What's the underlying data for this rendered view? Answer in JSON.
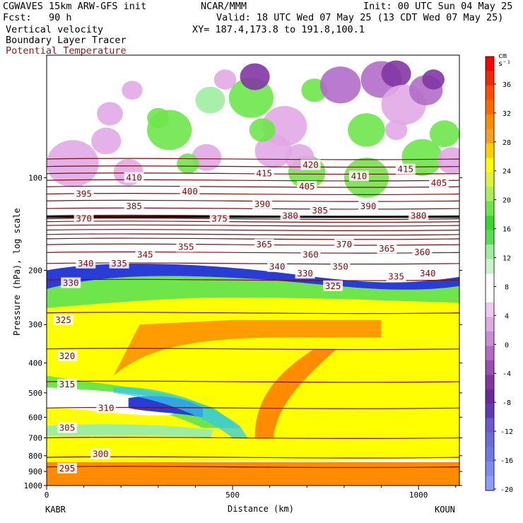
{
  "header": {
    "line1_left": "CGWAVES 15km ARW-GFS init",
    "line1_mid": "NCAR/MMM",
    "line1_right": "Init: 00 UTC Sun 04 May 25",
    "line2_left": "Fcst:   90 h",
    "line2_right": "Valid: 18 UTC Wed 07 May 25 (13 CDT Wed 07 May 25)",
    "line3_left": "Vertical velocity",
    "line3_right": "XY= 187.4,173.8 to 191.8,100.1",
    "line4_left": "Boundary Layer Tracer",
    "line5_left": "Potential Temperature"
  },
  "chart_data": {
    "type": "cross-section",
    "x_axis": {
      "label": "Distance (km)",
      "ticks": [
        0,
        500,
        1000
      ],
      "range": [
        0,
        1110
      ],
      "start_label": "KABR",
      "end_label": "KOUN"
    },
    "y_axis": {
      "label": "Pressure (hPa), log scale",
      "ticks": [
        100,
        200,
        300,
        400,
        500,
        600,
        700,
        800,
        900,
        1000
      ],
      "range": [
        1000,
        40
      ],
      "scale": "log"
    },
    "colorbar": {
      "unit": "cm s⁻¹",
      "labels": [
        36,
        32,
        28,
        24,
        20,
        16,
        12,
        8,
        4,
        0,
        -4,
        -8,
        -12,
        -16,
        -20
      ],
      "colors": [
        "#ff0000",
        "#f02a00",
        "#ff4c00",
        "#ff6a00",
        "#ff8c00",
        "#f5a020",
        "#ffd000",
        "#ffff00",
        "#e0f23a",
        "#aaf05a",
        "#6ee64b",
        "#36d72a",
        "#55dd55",
        "#9eeea0",
        "#c8f5cc",
        "#ffffff",
        "#ffffff",
        "#f0c8f0",
        "#e1a8e6",
        "#c78dd6",
        "#b36bc8",
        "#9c4db5",
        "#8236a3",
        "#6a2a99",
        "#5f3cb4",
        "#6a5acd",
        "#6b6cdc",
        "#7078e8",
        "#7d8cf2",
        "#8c9cff"
      ]
    },
    "theta_contours": [
      {
        "value": 295,
        "p": 870
      },
      {
        "value": 300,
        "p": 810
      },
      {
        "value": 305,
        "p": 700
      },
      {
        "value": 310,
        "p": 560
      },
      {
        "value": 315,
        "p": 460
      },
      {
        "value": 320,
        "p": 360
      },
      {
        "value": 325,
        "p": 275
      },
      {
        "value": 330,
        "p": 215
      },
      {
        "value": 335,
        "p": 190
      },
      {
        "value": 340,
        "p": 175
      },
      {
        "value": 345,
        "p": 165
      },
      {
        "value": 350,
        "p": 158
      },
      {
        "value": 355,
        "p": 153
      },
      {
        "value": 360,
        "p": 148
      },
      {
        "value": 365,
        "p": 143
      },
      {
        "value": 370,
        "p": 139
      },
      {
        "value": 375,
        "p": 136
      },
      {
        "value": 380,
        "p": 133
      },
      {
        "value": 385,
        "p": 126
      },
      {
        "value": 390,
        "p": 119
      },
      {
        "value": 395,
        "p": 113
      },
      {
        "value": 400,
        "p": 107
      },
      {
        "value": 405,
        "p": 102
      },
      {
        "value": 410,
        "p": 97
      },
      {
        "value": 415,
        "p": 92
      },
      {
        "value": 420,
        "p": 87
      }
    ],
    "theta_labels": [
      {
        "text": "295",
        "x": 55,
        "p": 880
      },
      {
        "text": "300",
        "x": 145,
        "p": 790
      },
      {
        "text": "305",
        "x": 55,
        "p": 650
      },
      {
        "text": "310",
        "x": 160,
        "p": 560
      },
      {
        "text": "315",
        "x": 55,
        "p": 470
      },
      {
        "text": "320",
        "x": 55,
        "p": 380
      },
      {
        "text": "325",
        "x": 45,
        "p": 290
      },
      {
        "text": "330",
        "x": 65,
        "p": 220
      },
      {
        "text": "335",
        "x": 195,
        "p": 190
      },
      {
        "text": "340",
        "x": 105,
        "p": 190
      },
      {
        "text": "345",
        "x": 265,
        "p": 178
      },
      {
        "text": "355",
        "x": 375,
        "p": 168
      },
      {
        "text": "365",
        "x": 585,
        "p": 165
      },
      {
        "text": "360",
        "x": 710,
        "p": 178
      },
      {
        "text": "370",
        "x": 800,
        "p": 165
      },
      {
        "text": "365",
        "x": 915,
        "p": 170
      },
      {
        "text": "360",
        "x": 1010,
        "p": 175
      },
      {
        "text": "350",
        "x": 790,
        "p": 195
      },
      {
        "text": "340",
        "x": 620,
        "p": 195
      },
      {
        "text": "330",
        "x": 695,
        "p": 205
      },
      {
        "text": "325",
        "x": 770,
        "p": 225
      },
      {
        "text": "335",
        "x": 940,
        "p": 210
      },
      {
        "text": "340",
        "x": 1025,
        "p": 205
      },
      {
        "text": "370",
        "x": 100,
        "p": 136
      },
      {
        "text": "375",
        "x": 465,
        "p": 136
      },
      {
        "text": "380",
        "x": 655,
        "p": 133
      },
      {
        "text": "385",
        "x": 735,
        "p": 128
      },
      {
        "text": "380",
        "x": 1000,
        "p": 133
      },
      {
        "text": "385",
        "x": 235,
        "p": 124
      },
      {
        "text": "390",
        "x": 580,
        "p": 122
      },
      {
        "text": "390",
        "x": 865,
        "p": 124
      },
      {
        "text": "395",
        "x": 100,
        "p": 113
      },
      {
        "text": "400",
        "x": 385,
        "p": 111
      },
      {
        "text": "405",
        "x": 700,
        "p": 107
      },
      {
        "text": "405",
        "x": 1055,
        "p": 104
      },
      {
        "text": "410",
        "x": 235,
        "p": 100
      },
      {
        "text": "410",
        "x": 840,
        "p": 99
      },
      {
        "text": "415",
        "x": 585,
        "p": 97
      },
      {
        "text": "415",
        "x": 965,
        "p": 94
      },
      {
        "text": "420",
        "x": 710,
        "p": 91
      }
    ]
  }
}
